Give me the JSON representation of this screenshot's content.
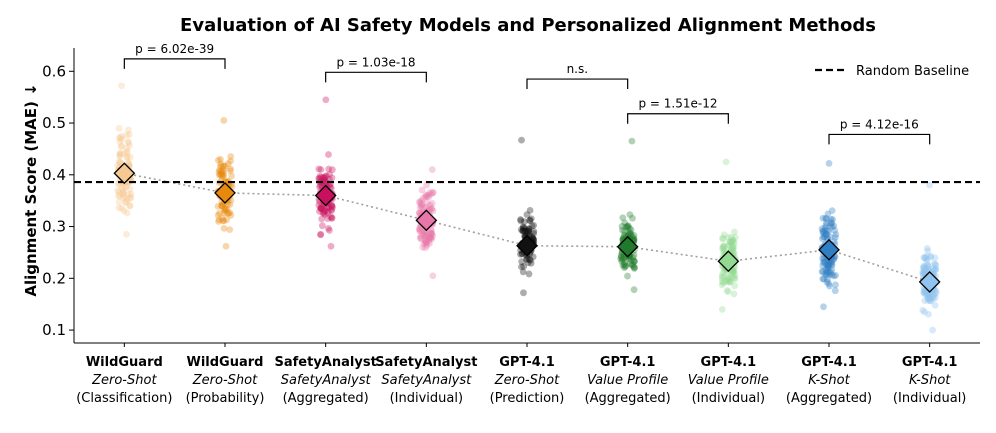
{
  "chart_data": {
    "type": "scatter",
    "title": "Evaluation of AI Safety Models and Personalized Alignment Methods",
    "ylabel": "Alignment Score (MAE) ↓",
    "ylim": [
      0.075,
      0.645
    ],
    "yticks": [
      0.1,
      0.2,
      0.3,
      0.4,
      0.5,
      0.6
    ],
    "ytick_labels": [
      "0.1",
      "0.2",
      "0.3",
      "0.4",
      "0.5",
      "0.6"
    ],
    "baseline": {
      "label": "Random Baseline",
      "value": 0.386
    },
    "legend_position": "top-right",
    "categories": [
      {
        "line1": "WildGuard",
        "line2": "Zero-Shot",
        "line3": "(Classification)",
        "mean": 0.403,
        "min": 0.285,
        "max": 0.572,
        "color": "#f6c992"
      },
      {
        "line1": "WildGuard",
        "line2": "Zero-Shot",
        "line3": "(Probability)",
        "mean": 0.365,
        "min": 0.262,
        "max": 0.505,
        "color": "#e8890f"
      },
      {
        "line1": "SafetyAnalyst",
        "line2": "SafetyAnalyst",
        "line3": "(Aggregated)",
        "mean": 0.36,
        "min": 0.262,
        "max": 0.545,
        "color": "#c8105f"
      },
      {
        "line1": "SafetyAnalyst",
        "line2": "SafetyAnalyst",
        "line3": "(Individual)",
        "mean": 0.312,
        "min": 0.205,
        "max": 0.41,
        "color": "#e777a9"
      },
      {
        "line1": "GPT-4.1",
        "line2": "Zero-Shot",
        "line3": "(Prediction)",
        "mean": 0.263,
        "min": 0.172,
        "max": 0.467,
        "color": "#111111"
      },
      {
        "line1": "GPT-4.1",
        "line2": "Value Profile",
        "line3": "(Aggregated)",
        "mean": 0.261,
        "min": 0.178,
        "max": 0.465,
        "color": "#1f7a2b"
      },
      {
        "line1": "GPT-4.1",
        "line2": "Value Profile",
        "line3": "(Individual)",
        "mean": 0.233,
        "min": 0.14,
        "max": 0.425,
        "color": "#92d992"
      },
      {
        "line1": "GPT-4.1",
        "line2": "K-Shot",
        "line3": "(Aggregated)",
        "mean": 0.255,
        "min": 0.145,
        "max": 0.422,
        "color": "#2f7dc2"
      },
      {
        "line1": "GPT-4.1",
        "line2": "K-Shot",
        "line3": "(Individual)",
        "mean": 0.193,
        "min": 0.1,
        "max": 0.38,
        "color": "#90c3ef"
      }
    ],
    "comparisons": [
      {
        "from": 0,
        "to": 1,
        "label": "p = 6.02e-39",
        "y": 0.624
      },
      {
        "from": 2,
        "to": 3,
        "label": "p = 1.03e-18",
        "y": 0.598
      },
      {
        "from": 4,
        "to": 5,
        "label": "n.s.",
        "y": 0.585
      },
      {
        "from": 5,
        "to": 6,
        "label": "p = 1.51e-12",
        "y": 0.518
      },
      {
        "from": 7,
        "to": 8,
        "label": "p = 4.12e-16",
        "y": 0.478
      }
    ]
  }
}
